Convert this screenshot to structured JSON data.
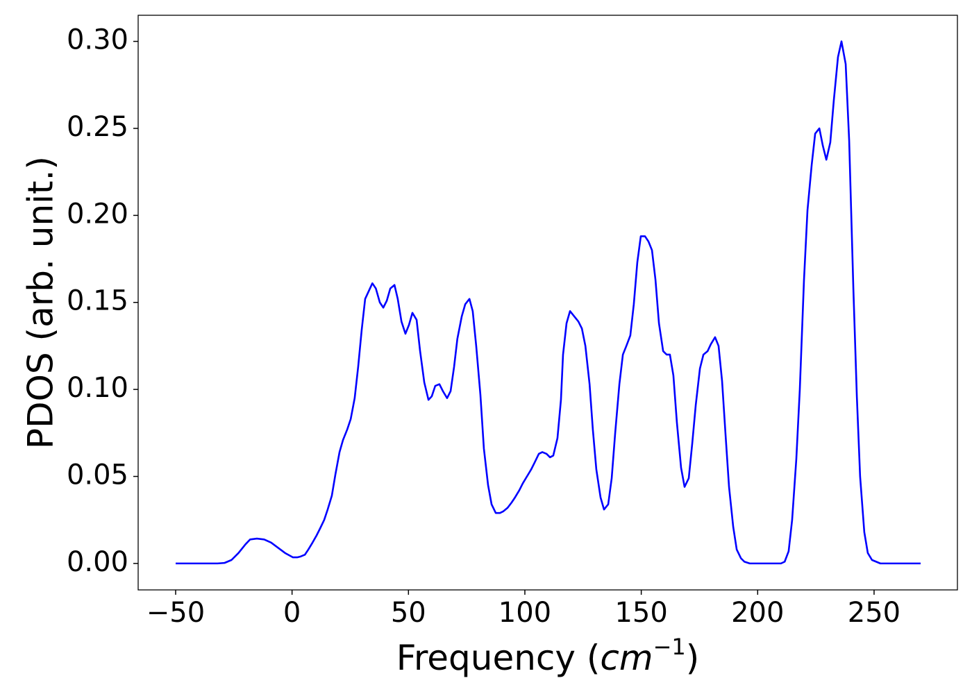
{
  "chart_data": {
    "type": "line",
    "ylabel": "PDOS (arb. unit.)",
    "xlabel_parts": [
      "Frequency (",
      "cm",
      "−1",
      ")"
    ],
    "color": "#0000ff",
    "x": [
      -50,
      -32,
      -29,
      -26,
      -23,
      -20,
      -18,
      -15.1,
      -12,
      -9,
      -6,
      -3,
      0.4,
      2.2,
      3.7,
      5.5,
      7,
      8.8,
      10.5,
      12,
      13.8,
      15.3,
      17.1,
      18.6,
      20.4,
      21.9,
      23.7,
      25.2,
      26.9,
      28.4,
      29.9,
      31.4,
      34.5,
      36,
      37.7,
      39.2,
      40.7,
      42.2,
      44,
      45.4,
      47,
      48.7,
      50.2,
      51.7,
      53.5,
      55,
      56.8,
      58.6,
      60,
      61.5,
      63.3,
      64.8,
      66.6,
      68.1,
      69.6,
      71,
      72.9,
      74.4,
      76.2,
      77.6,
      79.1,
      80.9,
      82.4,
      84.2,
      85.7,
      87.5,
      89.3,
      90.8,
      92.6,
      94.3,
      95.8,
      97.6,
      99.1,
      100.9,
      102.7,
      104.2,
      106,
      107.5,
      109.3,
      110.8,
      112.2,
      114,
      115.5,
      116.4,
      117.9,
      119.4,
      121.2,
      123,
      124.5,
      126,
      127.8,
      129.2,
      130.7,
      132.5,
      134,
      135.8,
      137.3,
      138.8,
      140.6,
      142.1,
      143.6,
      145.3,
      146.8,
      148.3,
      149.8,
      151.6,
      153.1,
      154.6,
      156.1,
      157.6,
      159.4,
      160.9,
      162.3,
      163.8,
      165.3,
      167.1,
      168.6,
      170.4,
      171.9,
      173.4,
      175.2,
      176.7,
      178.5,
      179.9,
      181.7,
      183.2,
      184.7,
      186.2,
      187.7,
      189.5,
      191,
      192.8,
      194.3,
      196.6,
      210,
      211.6,
      213.3,
      214.8,
      216.6,
      218.1,
      219.9,
      221.4,
      223.2,
      224.7,
      226.5,
      228,
      229.5,
      231.2,
      232.7,
      234.5,
      236,
      237.8,
      239.3,
      241.1,
      242.6,
      244,
      245.8,
      247.3,
      249.1,
      250.9,
      252.7,
      270
    ],
    "values": [
      0,
      0,
      0.0003,
      0.002,
      0.006,
      0.011,
      0.0138,
      0.0143,
      0.0138,
      0.012,
      0.009,
      0.006,
      0.0035,
      0.0035,
      0.004,
      0.005,
      0.008,
      0.012,
      0.016,
      0.02,
      0.025,
      0.031,
      0.039,
      0.051,
      0.064,
      0.071,
      0.077,
      0.083,
      0.095,
      0.113,
      0.134,
      0.152,
      0.161,
      0.158,
      0.15,
      0.147,
      0.151,
      0.158,
      0.16,
      0.152,
      0.139,
      0.132,
      0.137,
      0.144,
      0.14,
      0.122,
      0.104,
      0.094,
      0.096,
      0.102,
      0.103,
      0.099,
      0.095,
      0.099,
      0.113,
      0.129,
      0.142,
      0.149,
      0.152,
      0.145,
      0.125,
      0.097,
      0.066,
      0.045,
      0.034,
      0.029,
      0.029,
      0.03,
      0.032,
      0.035,
      0.038,
      0.042,
      0.046,
      0.05,
      0.054,
      0.058,
      0.063,
      0.064,
      0.063,
      0.061,
      0.062,
      0.072,
      0.094,
      0.12,
      0.138,
      0.145,
      0.142,
      0.139,
      0.135,
      0.125,
      0.103,
      0.077,
      0.054,
      0.038,
      0.031,
      0.034,
      0.049,
      0.075,
      0.103,
      0.12,
      0.125,
      0.131,
      0.149,
      0.173,
      0.188,
      0.188,
      0.185,
      0.18,
      0.163,
      0.138,
      0.122,
      0.12,
      0.12,
      0.108,
      0.081,
      0.055,
      0.044,
      0.049,
      0.069,
      0.091,
      0.112,
      0.12,
      0.122,
      0.126,
      0.13,
      0.125,
      0.105,
      0.074,
      0.044,
      0.021,
      0.008,
      0.003,
      0.001,
      0,
      0,
      0.001,
      0.007,
      0.025,
      0.06,
      0.1,
      0.163,
      0.203,
      0.229,
      0.247,
      0.25,
      0.24,
      0.232,
      0.242,
      0.266,
      0.291,
      0.3,
      0.287,
      0.243,
      0.158,
      0.096,
      0.05,
      0.018,
      0.006,
      0.002,
      0.001,
      0,
      0
    ],
    "xlim": [
      -66.1,
      285.8
    ],
    "ylim": [
      -0.0152,
      0.315
    ],
    "xticks": [
      {
        "value": -50,
        "label": "−50"
      },
      0,
      50,
      100,
      150,
      200,
      250
    ],
    "yticks": [
      {
        "value": 0,
        "label": "0.00"
      },
      {
        "value": 0.05,
        "label": "0.05"
      },
      {
        "value": 0.1,
        "label": "0.10"
      },
      {
        "value": 0.15,
        "label": "0.15"
      },
      {
        "value": 0.2,
        "label": "0.20"
      },
      {
        "value": 0.25,
        "label": "0.25"
      },
      {
        "value": 0.3,
        "label": "0.30"
      }
    ]
  }
}
